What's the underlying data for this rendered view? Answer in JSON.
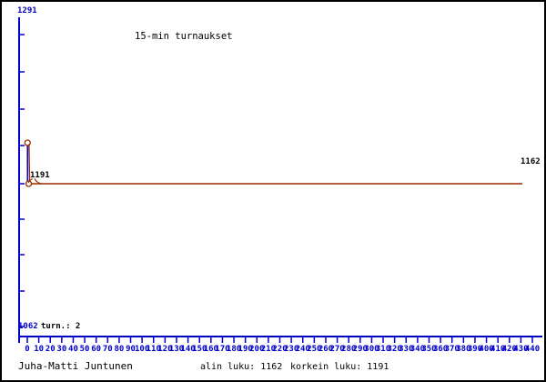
{
  "colors": {
    "background": "#ffffff",
    "border": "#000000",
    "axis_blue": "#0000cc",
    "series_red": "#992e00",
    "text_black": "#000000"
  },
  "chart_data": {
    "type": "line",
    "title": "15-min turnaukset",
    "x": [
      1,
      2
    ],
    "values": [
      1191,
      1162
    ],
    "series": [
      {
        "name": "rating",
        "points": [
          {
            "tournament": 1,
            "rating": 1191
          },
          {
            "tournament": 2,
            "rating": 1162
          }
        ]
      }
    ],
    "current_rating_line": 1162,
    "x_axis": {
      "min": 0,
      "max": 440,
      "step": 10,
      "tick_labels": [
        "0",
        "10",
        "20",
        "30",
        "40",
        "50",
        "60",
        "70",
        "80",
        "90",
        "100",
        "110",
        "120",
        "130",
        "140",
        "150",
        "160",
        "170",
        "180",
        "190",
        "200",
        "210",
        "220",
        "230",
        "240",
        "250",
        "260",
        "270",
        "280",
        "290",
        "300",
        "310",
        "320",
        "330",
        "340",
        "350",
        "360",
        "370",
        "380",
        "390",
        "400",
        "410",
        "420",
        "430",
        "440"
      ]
    },
    "y_axis": {
      "min": 1062,
      "max": 1291,
      "top_label": "1291",
      "bottom_label": "1062"
    },
    "annotations": {
      "peak_label": "1191",
      "line_end_label": "1162",
      "tournaments_count_label": "turn.: 2"
    },
    "grid": "off",
    "legend": "none"
  },
  "footer": {
    "player": "Juha-Matti Juntunen",
    "stats_low": "alin luku: 1162",
    "stats_high": "korkein luku: 1191"
  }
}
